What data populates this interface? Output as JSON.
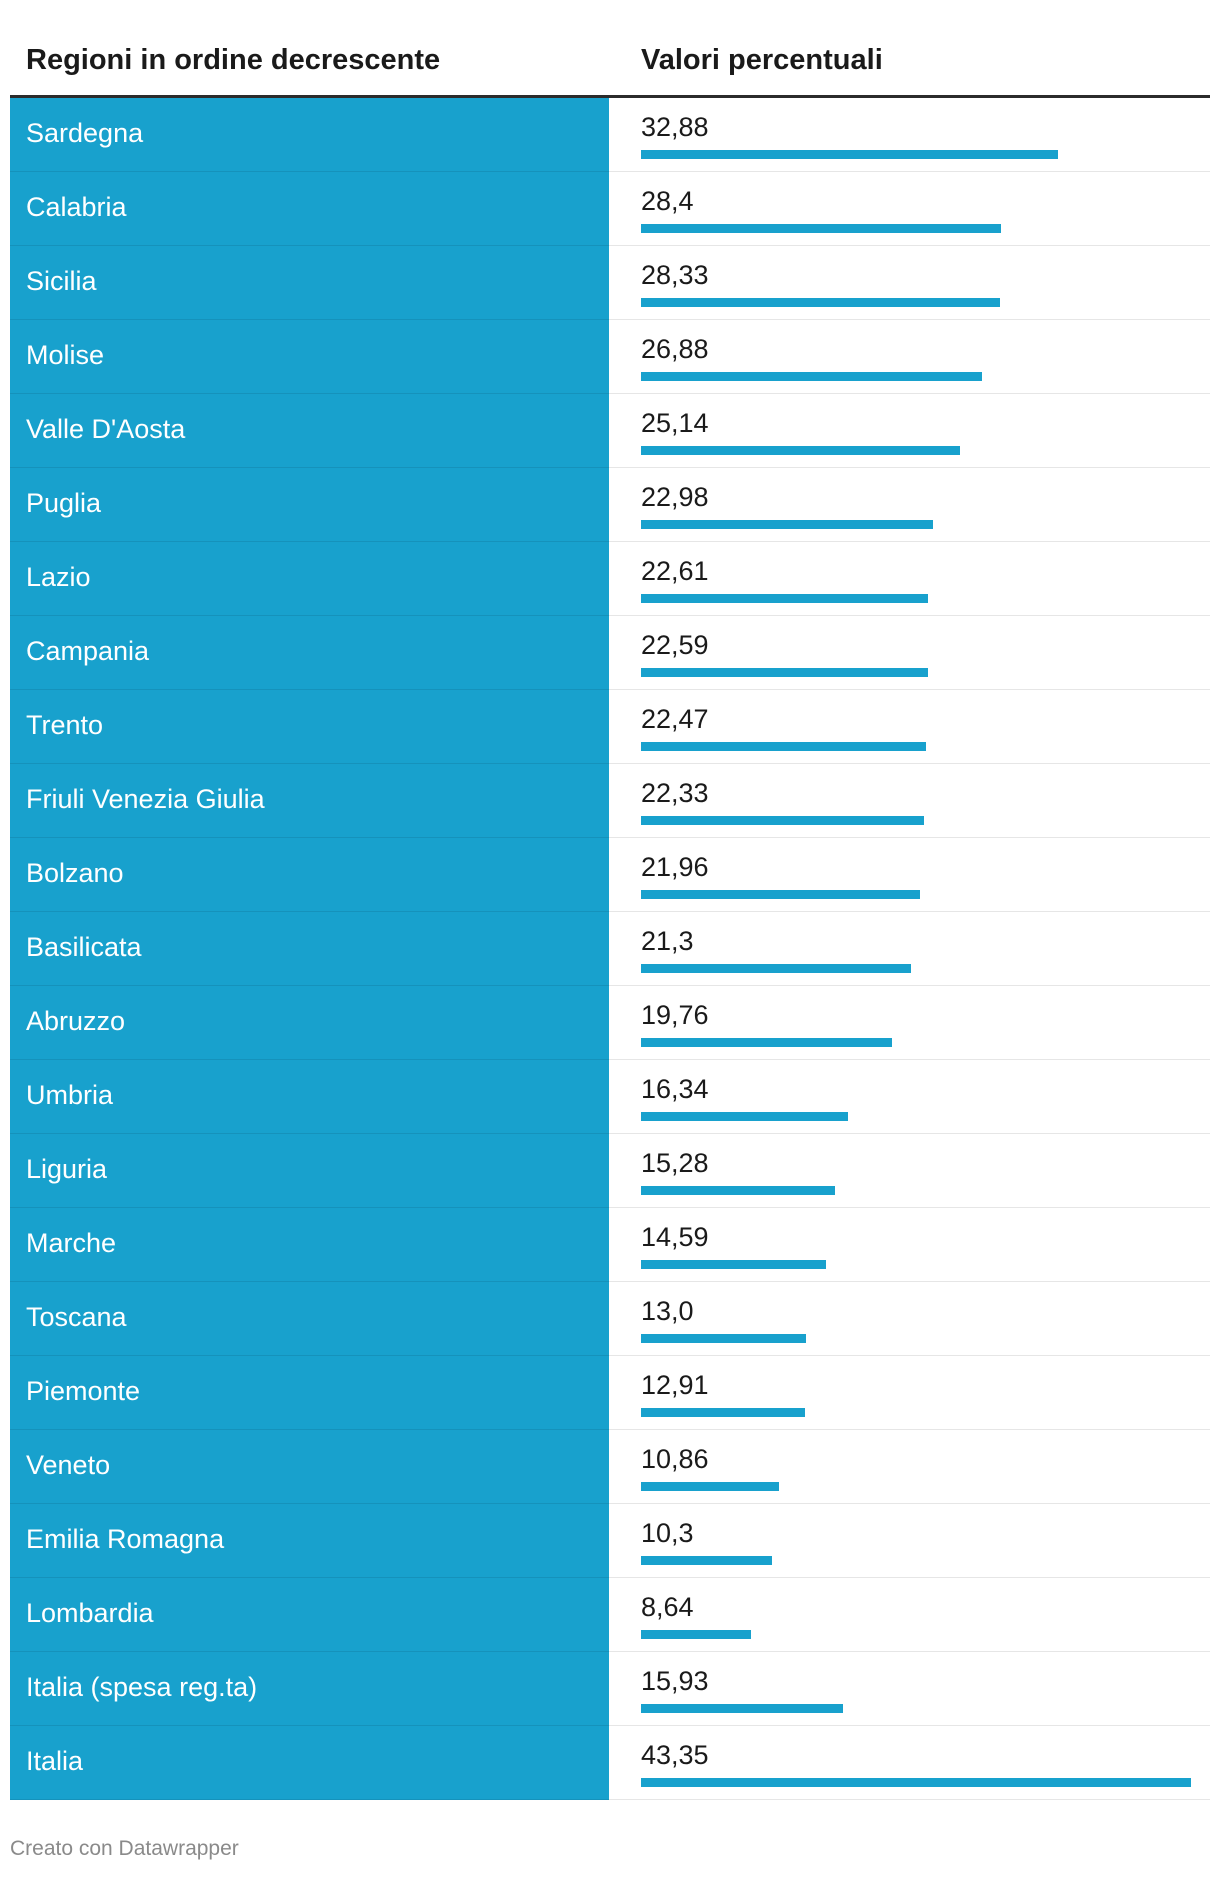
{
  "chart_data": {
    "type": "table",
    "columns": [
      "Regioni in ordine decrescente",
      "Valori percentuali"
    ],
    "rows": [
      {
        "region": "Sardegna",
        "value": 32.88,
        "label": "32,88"
      },
      {
        "region": "Calabria",
        "value": 28.4,
        "label": "28,4"
      },
      {
        "region": "Sicilia",
        "value": 28.33,
        "label": "28,33"
      },
      {
        "region": "Molise",
        "value": 26.88,
        "label": "26,88"
      },
      {
        "region": "Valle D'Aosta",
        "value": 25.14,
        "label": "25,14"
      },
      {
        "region": "Puglia",
        "value": 22.98,
        "label": "22,98"
      },
      {
        "region": "Lazio",
        "value": 22.61,
        "label": "22,61"
      },
      {
        "region": "Campania",
        "value": 22.59,
        "label": "22,59"
      },
      {
        "region": "Trento",
        "value": 22.47,
        "label": "22,47"
      },
      {
        "region": "Friuli Venezia Giulia",
        "value": 22.33,
        "label": "22,33"
      },
      {
        "region": "Bolzano",
        "value": 21.96,
        "label": "21,96"
      },
      {
        "region": "Basilicata",
        "value": 21.3,
        "label": "21,3"
      },
      {
        "region": "Abruzzo",
        "value": 19.76,
        "label": "19,76"
      },
      {
        "region": "Umbria",
        "value": 16.34,
        "label": "16,34"
      },
      {
        "region": "Liguria",
        "value": 15.28,
        "label": "15,28"
      },
      {
        "region": "Marche",
        "value": 14.59,
        "label": "14,59"
      },
      {
        "region": "Toscana",
        "value": 13.0,
        "label": "13,0"
      },
      {
        "region": "Piemonte",
        "value": 12.91,
        "label": "12,91"
      },
      {
        "region": "Veneto",
        "value": 10.86,
        "label": "10,86"
      },
      {
        "region": "Emilia Romagna",
        "value": 10.3,
        "label": "10,3"
      },
      {
        "region": "Lombardia",
        "value": 8.64,
        "label": "8,64"
      },
      {
        "region": "Italia (spesa reg.ta)",
        "value": 15.93,
        "label": "15,93"
      },
      {
        "region": "Italia",
        "value": 43.35,
        "label": "43,35"
      }
    ],
    "bar_max": 43.35
  },
  "colors": {
    "accent": "#18a1cd",
    "header_rule": "#2b2b2b",
    "footer_text": "#8a8a8a"
  },
  "footer": "Creato con Datawrapper"
}
